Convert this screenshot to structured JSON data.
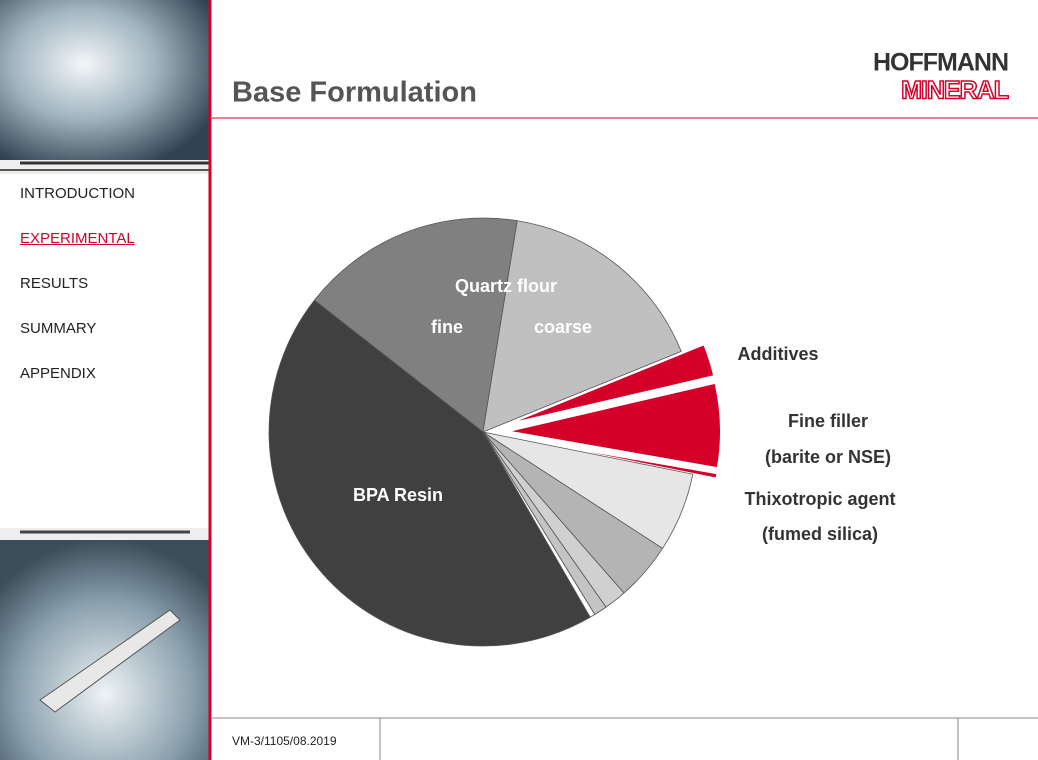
{
  "header": {
    "title": "Base Formulation",
    "logo": [
      "HOFFMANN",
      "MINERAL"
    ]
  },
  "nav": [
    {
      "label": "INTRODUCTION",
      "active": false
    },
    {
      "label": "EXPERIMENTAL",
      "active": true
    },
    {
      "label": "RESULTS",
      "active": false
    },
    {
      "label": "SUMMARY",
      "active": false
    },
    {
      "label": "APPENDIX",
      "active": false
    }
  ],
  "footer": {
    "code": "VM-3/1105/08.2019"
  },
  "chart_data": {
    "type": "pie",
    "group_label": "Quartz flour",
    "start_angle": 308,
    "categories": [
      "fine",
      "coarse",
      "Additives",
      [
        "Fine filler",
        "(barite or NSE)"
      ],
      [
        "Thixotropic agent",
        "(fumed silica)"
      ],
      null,
      null,
      null,
      null,
      null,
      "BPA Resin"
    ],
    "values": [
      17,
      16.3,
      2.5,
      6.4,
      0.4,
      6,
      4.4,
      1.7,
      1,
      0.4,
      43.9
    ],
    "colors": [
      "#808080",
      "#c0c0c0",
      "#d4002a",
      "#d4002a",
      "#d4002a",
      "#e6e6e6",
      "#b4b4b4",
      "#d0d0d0",
      "#c4c4c4",
      "#ffffff",
      "#404040"
    ],
    "exploded": [
      false,
      false,
      true,
      true,
      true,
      false,
      false,
      false,
      false,
      false,
      false
    ]
  }
}
